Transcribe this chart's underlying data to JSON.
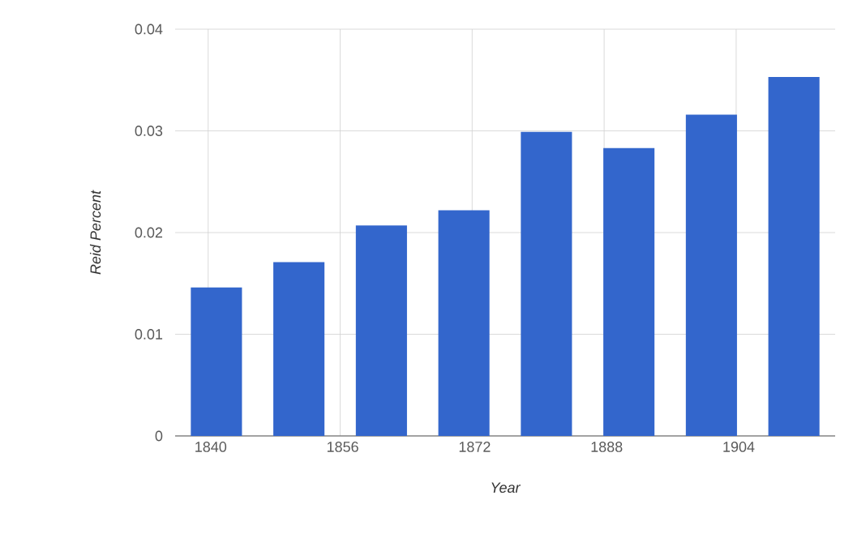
{
  "chart_data": {
    "type": "bar",
    "xlabel": "Year",
    "ylabel": "Reid Percent",
    "x": [
      1841,
      1851,
      1861,
      1871,
      1881,
      1891,
      1901,
      1911
    ],
    "values": [
      0.0146,
      0.0171,
      0.0207,
      0.0222,
      0.0299,
      0.0283,
      0.0316,
      0.0353
    ],
    "color": "#3366cc",
    "xlim": [
      1836,
      1916
    ],
    "xticks": [
      1840,
      1856,
      1872,
      1888,
      1904
    ],
    "ylim": [
      0,
      0.04
    ],
    "yticks": [
      0,
      0.01,
      0.02,
      0.03,
      0.04
    ],
    "grid": true
  }
}
